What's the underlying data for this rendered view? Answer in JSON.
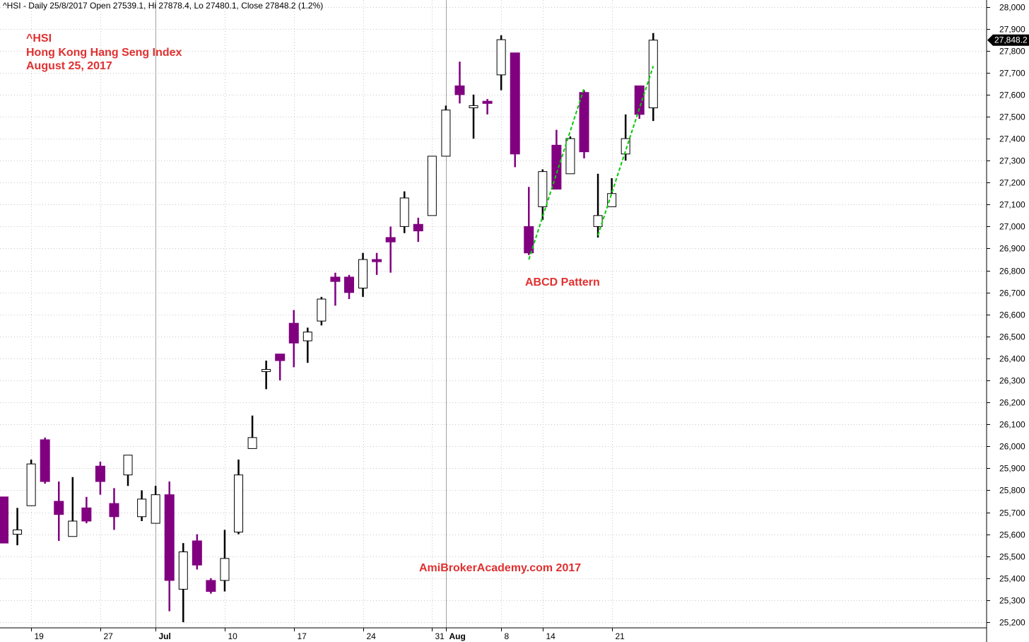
{
  "header": {
    "info_line": "^HSI - Daily 25/8/2017 Open 27539.1, Hi 27878.4, Lo 27480.1, Close 27848.2 (1.2%)"
  },
  "title_block": {
    "line1": "^HSI",
    "line2": "Hong Kong Hang Seng Index",
    "line3": "August 25, 2017"
  },
  "annotations": {
    "pattern_label": "ABCD Pattern",
    "watermark": "AmiBrokerAcademy.com  2017"
  },
  "colors": {
    "bearish": "#800080",
    "bullish": "#ffffff",
    "outline": "#000000",
    "text_red": "#e03030",
    "trendline": "#00cc00",
    "grid": "#c8c8c8",
    "vline": "#a0a0a0"
  },
  "chart_data": {
    "type": "candlestick",
    "ylim": [
      25150,
      28050
    ],
    "yticks": [
      "25,200",
      "25,300",
      "25,400",
      "25,500",
      "25,600",
      "25,700",
      "25,800",
      "25,900",
      "26,000",
      "26,100",
      "26,200",
      "26,300",
      "26,400",
      "26,500",
      "26,600",
      "26,700",
      "26,800",
      "26,900",
      "27,000",
      "27,100",
      "27,200",
      "27,300",
      "27,400",
      "27,500",
      "27,600",
      "27,700",
      "27,800",
      "27,900",
      "28,000"
    ],
    "ytick_values": [
      25200,
      25300,
      25400,
      25500,
      25600,
      25700,
      25800,
      25900,
      26000,
      26100,
      26200,
      26300,
      26400,
      26500,
      26600,
      26700,
      26800,
      26900,
      27000,
      27100,
      27200,
      27300,
      27400,
      27500,
      27600,
      27700,
      27800,
      27900,
      28000
    ],
    "last_price_label": "27,848.2",
    "last_price": 27848.2,
    "x_ticks": [
      {
        "label": "19",
        "index": 2
      },
      {
        "label": "27",
        "index": 7
      },
      {
        "label": "Jul",
        "index": 11,
        "bold": true
      },
      {
        "label": "10",
        "index": 16
      },
      {
        "label": "17",
        "index": 21
      },
      {
        "label": "24",
        "index": 26
      },
      {
        "label": "31",
        "index": 31
      },
      {
        "label": "Aug",
        "index": 32,
        "bold": true
      },
      {
        "label": "8",
        "index": 36
      },
      {
        "label": "14",
        "index": 39
      },
      {
        "label": "21",
        "index": 44
      }
    ],
    "month_separators": [
      11,
      32
    ],
    "candles": [
      {
        "o": 25770,
        "h": 25770,
        "l": 25560,
        "c": 25560
      },
      {
        "o": 25600,
        "h": 25720,
        "l": 25550,
        "c": 25620
      },
      {
        "o": 25730,
        "h": 25940,
        "l": 25730,
        "c": 25920
      },
      {
        "o": 26030,
        "h": 26040,
        "l": 25830,
        "c": 25840
      },
      {
        "o": 25750,
        "h": 25840,
        "l": 25570,
        "c": 25690
      },
      {
        "o": 25590,
        "h": 25860,
        "l": 25590,
        "c": 25660
      },
      {
        "o": 25720,
        "h": 25770,
        "l": 25650,
        "c": 25660
      },
      {
        "o": 25910,
        "h": 25930,
        "l": 25780,
        "c": 25840
      },
      {
        "o": 25740,
        "h": 25810,
        "l": 25620,
        "c": 25680
      },
      {
        "o": 25870,
        "h": 25960,
        "l": 25820,
        "c": 25960
      },
      {
        "o": 25680,
        "h": 25800,
        "l": 25660,
        "c": 25760
      },
      {
        "o": 25650,
        "h": 25820,
        "l": 25650,
        "c": 25780
      },
      {
        "o": 25780,
        "h": 25840,
        "l": 25250,
        "c": 25390
      },
      {
        "o": 25350,
        "h": 25560,
        "l": 25200,
        "c": 25520
      },
      {
        "o": 25570,
        "h": 25600,
        "l": 25440,
        "c": 25460
      },
      {
        "o": 25390,
        "h": 25400,
        "l": 25330,
        "c": 25340
      },
      {
        "o": 25390,
        "h": 25620,
        "l": 25340,
        "c": 25490
      },
      {
        "o": 25610,
        "h": 25940,
        "l": 25600,
        "c": 25870
      },
      {
        "o": 25990,
        "h": 26140,
        "l": 25990,
        "c": 26040
      },
      {
        "o": 26340,
        "h": 26390,
        "l": 26260,
        "c": 26350
      },
      {
        "o": 26420,
        "h": 26420,
        "l": 26300,
        "c": 26390
      },
      {
        "o": 26560,
        "h": 26620,
        "l": 26360,
        "c": 26470
      },
      {
        "o": 26480,
        "h": 26540,
        "l": 26380,
        "c": 26520
      },
      {
        "o": 26570,
        "h": 26680,
        "l": 26550,
        "c": 26670
      },
      {
        "o": 26770,
        "h": 26790,
        "l": 26640,
        "c": 26750
      },
      {
        "o": 26770,
        "h": 26780,
        "l": 26670,
        "c": 26700
      },
      {
        "o": 26720,
        "h": 26880,
        "l": 26680,
        "c": 26850
      },
      {
        "o": 26850,
        "h": 26880,
        "l": 26780,
        "c": 26840
      },
      {
        "o": 26950,
        "h": 27000,
        "l": 26790,
        "c": 26930
      },
      {
        "o": 27000,
        "h": 27160,
        "l": 26970,
        "c": 27130
      },
      {
        "o": 27010,
        "h": 27040,
        "l": 26930,
        "c": 26980
      },
      {
        "o": 27050,
        "h": 27320,
        "l": 27050,
        "c": 27320
      },
      {
        "o": 27320,
        "h": 27550,
        "l": 27320,
        "c": 27530
      },
      {
        "o": 27640,
        "h": 27750,
        "l": 27560,
        "c": 27600
      },
      {
        "o": 27540,
        "h": 27600,
        "l": 27400,
        "c": 27550
      },
      {
        "o": 27570,
        "h": 27580,
        "l": 27510,
        "c": 27560
      },
      {
        "o": 27690,
        "h": 27870,
        "l": 27620,
        "c": 27850
      },
      {
        "o": 27790,
        "h": 27790,
        "l": 27270,
        "c": 27330
      },
      {
        "o": 27000,
        "h": 27180,
        "l": 26870,
        "c": 26880
      },
      {
        "o": 27090,
        "h": 27260,
        "l": 27030,
        "c": 27250
      },
      {
        "o": 27370,
        "h": 27440,
        "l": 27170,
        "c": 27170
      },
      {
        "o": 27240,
        "h": 27410,
        "l": 27240,
        "c": 27400
      },
      {
        "o": 27610,
        "h": 27620,
        "l": 27310,
        "c": 27340
      },
      {
        "o": 27000,
        "h": 27240,
        "l": 26950,
        "c": 27050
      },
      {
        "o": 27090,
        "h": 27220,
        "l": 27090,
        "c": 27150
      },
      {
        "o": 27330,
        "h": 27510,
        "l": 27300,
        "c": 27400
      },
      {
        "o": 27640,
        "h": 27640,
        "l": 27490,
        "c": 27510
      },
      {
        "o": 27540,
        "h": 27880,
        "l": 27480,
        "c": 27848
      }
    ],
    "trendlines": [
      {
        "i1": 38,
        "v1": 26850,
        "i2": 42,
        "v2": 27630
      },
      {
        "i1": 43,
        "v1": 26960,
        "i2": 47,
        "v2": 27730
      }
    ]
  }
}
